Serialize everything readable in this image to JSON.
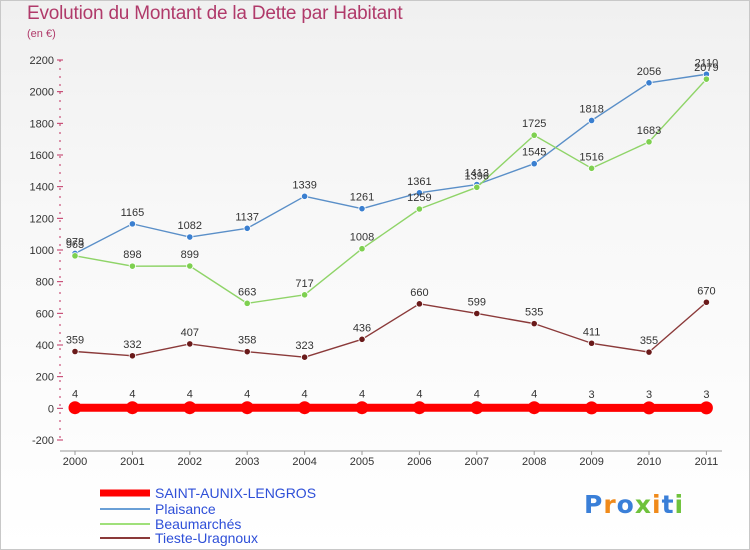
{
  "chart_data": {
    "type": "line",
    "title": "Evolution du Montant de la Dette par Habitant",
    "subtitle": "(en €)",
    "xlabel": "",
    "ylabel": "",
    "categories": [
      "2000",
      "2001",
      "2002",
      "2003",
      "2004",
      "2005",
      "2006",
      "2007",
      "2008",
      "2009",
      "2010",
      "2011"
    ],
    "ylim": [
      -200,
      2200
    ],
    "yticks": [
      "-200",
      "0",
      "200",
      "400",
      "600",
      "800",
      "1000",
      "1200",
      "1400",
      "1600",
      "1800",
      "2000",
      "2200"
    ],
    "grid": false,
    "legend_position": "bottom-left",
    "series": [
      {
        "name": "SAINT-AUNIX-LENGROS",
        "color": "#ff0000",
        "values": [
          4,
          4,
          4,
          4,
          4,
          4,
          4,
          4,
          4,
          3,
          3,
          3
        ]
      },
      {
        "name": "Plaisance",
        "color": "#6a9fd6",
        "values": [
          978,
          1165,
          1082,
          1137,
          1339,
          1261,
          1361,
          1413,
          1545,
          1818,
          2056,
          2110
        ]
      },
      {
        "name": "Beaumarchés",
        "color": "#9fe07a",
        "values": [
          963,
          898,
          899,
          663,
          717,
          1008,
          1259,
          1396,
          1725,
          1516,
          1683,
          2079
        ]
      },
      {
        "name": "Tieste-Uragnoux",
        "color": "#8b3a3a",
        "values": [
          359,
          332,
          407,
          358,
          323,
          436,
          660,
          599,
          535,
          411,
          355,
          670
        ]
      }
    ]
  },
  "logo": {
    "text": "Proxiti",
    "colors": [
      "#3a7fd8",
      "#f08a1a",
      "#3a7fd8",
      "#6fc23c",
      "#f08a1a",
      "#3a7fd8",
      "#6fc23c"
    ]
  }
}
